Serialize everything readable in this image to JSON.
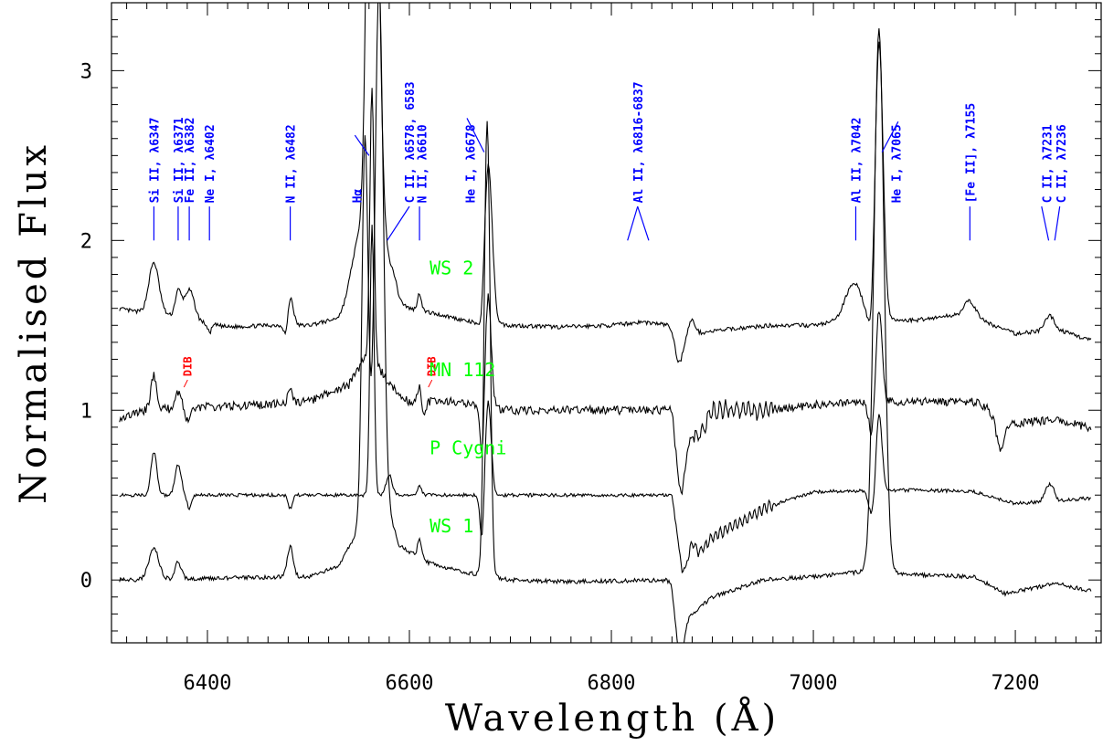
{
  "chart_data": {
    "type": "line",
    "xlabel": "Wavelength (Å)",
    "ylabel": "Normalised Flux",
    "xlim": [
      6305,
      7285
    ],
    "ylim": [
      -0.37,
      3.4
    ],
    "xticks": [
      6400,
      6600,
      6800,
      7000,
      7200
    ],
    "yticks": [
      0,
      1,
      2,
      3
    ],
    "grid": false,
    "colors": {
      "spectrum": "#000000",
      "line_id": "#0000ff",
      "star": "#00ff00",
      "dib": "#ff0000"
    },
    "series": [
      {
        "name": "WS 2",
        "offset": 1.5,
        "noise": 0.012,
        "start": 1.62,
        "end": 1.35,
        "points": [
          [
            6310,
            0.1
          ],
          [
            6330,
            0.08
          ],
          [
            6360,
            0.06
          ],
          [
            6380,
            0.03
          ],
          [
            6420,
            -0.01
          ],
          [
            6460,
            0
          ],
          [
            6500,
            0
          ],
          [
            6530,
            0.04
          ],
          [
            6550,
            0.15
          ],
          [
            6560,
            0.45
          ],
          [
            6572,
            0.3
          ],
          [
            6580,
            0.18
          ],
          [
            6600,
            0.1
          ],
          [
            6640,
            0.05
          ],
          [
            6660,
            0.02
          ],
          [
            6700,
            0
          ],
          [
            6750,
            -0.01
          ],
          [
            6800,
            0
          ],
          [
            6830,
            0.02
          ],
          [
            6860,
            0
          ],
          [
            6880,
            -0.05
          ],
          [
            6920,
            -0.02
          ],
          [
            6960,
            0
          ],
          [
            7000,
            0
          ],
          [
            7030,
            0.03
          ],
          [
            7100,
            0.03
          ],
          [
            7140,
            0.06
          ],
          [
            7170,
            0.02
          ],
          [
            7200,
            -0.05
          ],
          [
            7240,
            -0.02
          ],
          [
            7270,
            -0.08
          ]
        ],
        "features": [
          [
            6347,
            0.3,
            5
          ],
          [
            6371,
            0.15,
            3
          ],
          [
            6382,
            0.18,
            5
          ],
          [
            6402,
            -0.05,
            2
          ],
          [
            6482,
            0.17,
            3
          ],
          [
            6478,
            -0.1,
            2
          ],
          [
            6563,
            3.6,
            4
          ],
          [
            6566,
            1.5,
            6
          ],
          [
            6550,
            0.35,
            8
          ],
          [
            6583,
            0.15,
            4
          ],
          [
            6610,
            0.1,
            2
          ],
          [
            6672,
            -0.15,
            3
          ],
          [
            6678,
            0.95,
            4
          ],
          [
            6867,
            -0.2,
            4
          ],
          [
            6880,
            0.08,
            3
          ],
          [
            7040,
            0.22,
            8
          ],
          [
            7058,
            -0.2,
            3
          ],
          [
            7065,
            1.65,
            4
          ],
          [
            7155,
            0.1,
            6
          ],
          [
            7231,
            0.05,
            3
          ],
          [
            7236,
            0.06,
            3
          ]
        ]
      },
      {
        "name": "MN 112",
        "offset": 1.0,
        "noise": 0.025,
        "start": 0.94,
        "end": 0.85,
        "points": [
          [
            6310,
            -0.05
          ],
          [
            6340,
            0
          ],
          [
            6400,
            0.02
          ],
          [
            6450,
            0.03
          ],
          [
            6500,
            0.05
          ],
          [
            6540,
            0.15
          ],
          [
            6560,
            0.35
          ],
          [
            6580,
            0.15
          ],
          [
            6600,
            0.05
          ],
          [
            6640,
            0.05
          ],
          [
            6700,
            0
          ],
          [
            6800,
            0
          ],
          [
            6860,
            0
          ],
          [
            6870,
            -0.35
          ],
          [
            6900,
            0
          ],
          [
            6950,
            0
          ],
          [
            7000,
            0.03
          ],
          [
            7060,
            0.05
          ],
          [
            7100,
            0.05
          ],
          [
            7160,
            0.05
          ],
          [
            7200,
            -0.08
          ],
          [
            7240,
            -0.05
          ],
          [
            7270,
            -0.1
          ]
        ],
        "features": [
          [
            6347,
            0.2,
            3
          ],
          [
            6371,
            0.1,
            3
          ],
          [
            6380,
            -0.08,
            2
          ],
          [
            6482,
            0.1,
            2
          ],
          [
            6563,
            1.6,
            2
          ],
          [
            6610,
            0.1,
            2
          ],
          [
            6614,
            -0.1,
            2
          ],
          [
            6672,
            -0.35,
            2
          ],
          [
            6678,
            0.65,
            3
          ],
          [
            6867,
            -0.2,
            3
          ],
          [
            6880,
            0.1,
            3
          ],
          [
            7058,
            -0.2,
            3
          ],
          [
            7065,
            0.55,
            3
          ],
          [
            7185,
            -0.2,
            4
          ]
        ]
      },
      {
        "name": "P Cygni",
        "offset": 0.5,
        "noise": 0.01,
        "start": 0.5,
        "end": 0.48,
        "points": [
          [
            6310,
            0
          ],
          [
            6500,
            0
          ],
          [
            6700,
            0
          ],
          [
            6860,
            0
          ],
          [
            6870,
            -0.45
          ],
          [
            6900,
            -0.25
          ],
          [
            6950,
            -0.08
          ],
          [
            7000,
            0.02
          ],
          [
            7100,
            0.03
          ],
          [
            7160,
            0.02
          ],
          [
            7200,
            -0.05
          ],
          [
            7270,
            -0.02
          ]
        ],
        "features": [
          [
            6347,
            0.25,
            3
          ],
          [
            6371,
            0.18,
            3
          ],
          [
            6382,
            -0.08,
            2
          ],
          [
            6482,
            -0.08,
            2
          ],
          [
            6563,
            1.6,
            2
          ],
          [
            6580,
            0.12,
            3
          ],
          [
            6610,
            0.06,
            2
          ],
          [
            6672,
            -0.3,
            2
          ],
          [
            6678,
            0.55,
            3
          ],
          [
            6880,
            0.1,
            3
          ],
          [
            7058,
            -0.15,
            3
          ],
          [
            7065,
            0.45,
            3
          ],
          [
            7231,
            0.06,
            3
          ],
          [
            7236,
            0.08,
            3
          ]
        ]
      },
      {
        "name": "WS 1",
        "offset": 0.0,
        "noise": 0.012,
        "start": 0.0,
        "end": -0.06,
        "points": [
          [
            6310,
            0
          ],
          [
            6500,
            0.02
          ],
          [
            6530,
            0.08
          ],
          [
            6550,
            0.3
          ],
          [
            6560,
            0.5
          ],
          [
            6575,
            0.5
          ],
          [
            6590,
            0.2
          ],
          [
            6620,
            0.1
          ],
          [
            6650,
            0.05
          ],
          [
            6700,
            0
          ],
          [
            6760,
            -0.01
          ],
          [
            6860,
            0
          ],
          [
            6870,
            -0.25
          ],
          [
            6900,
            -0.1
          ],
          [
            6950,
            0
          ],
          [
            7000,
            0.02
          ],
          [
            7050,
            0.05
          ],
          [
            7100,
            0.03
          ],
          [
            7160,
            0.02
          ],
          [
            7190,
            -0.08
          ],
          [
            7240,
            -0.02
          ],
          [
            7270,
            -0.06
          ]
        ],
        "features": [
          [
            6347,
            0.18,
            5
          ],
          [
            6371,
            0.1,
            3
          ],
          [
            6482,
            0.18,
            3
          ],
          [
            6556,
            2.2,
            3
          ],
          [
            6570,
            3.0,
            4
          ],
          [
            6610,
            0.1,
            2
          ],
          [
            6672,
            -0.1,
            2
          ],
          [
            6677,
            2.7,
            3
          ],
          [
            6682,
            -0.1,
            2
          ],
          [
            6867,
            -0.25,
            4
          ],
          [
            7065,
            3.2,
            5
          ]
        ]
      }
    ],
    "star_labels": [
      {
        "name": "WS 2",
        "x": 6620,
        "y": 1.8
      },
      {
        "name": "MN 112",
        "x": 6620,
        "y": 1.2
      },
      {
        "name": "P Cygni",
        "x": 6620,
        "y": 0.74
      },
      {
        "name": "WS 1",
        "x": 6620,
        "y": 0.28
      }
    ],
    "line_ids": [
      {
        "text": "Si II, λ6347",
        "x": 6347,
        "ticks": [
          [
            6347,
            6347
          ]
        ]
      },
      {
        "text": "Si II, λ6371",
        "x": 6371,
        "ticks": [
          [
            6371,
            6371
          ]
        ]
      },
      {
        "text": "Fe II, λ6382",
        "x": 6382,
        "ticks": [
          [
            6382,
            6382
          ]
        ]
      },
      {
        "text": "Ne I, λ6402",
        "x": 6402,
        "ticks": [
          [
            6402,
            6402
          ]
        ]
      },
      {
        "text": "N II, λ6482",
        "x": 6482,
        "ticks": [
          [
            6482,
            6482
          ]
        ]
      },
      {
        "text": "Hα",
        "x": 6548,
        "ticks": []
      },
      {
        "text": "C II, λ6578, 6583",
        "x": 6600,
        "ticks": [
          [
            6600,
            6578
          ]
        ]
      },
      {
        "text": "N II, λ6610",
        "x": 6612,
        "ticks": [
          [
            6610,
            6610
          ]
        ]
      },
      {
        "text": "He I, λ6678",
        "x": 6660,
        "ticks": []
      },
      {
        "text": "Al II, λ6816-6837",
        "x": 6826,
        "ticks": [
          [
            6826,
            6816
          ],
          [
            6826,
            6837
          ]
        ]
      },
      {
        "text": "Al II, λ7042",
        "x": 7042,
        "ticks": [
          [
            7042,
            7042
          ]
        ]
      },
      {
        "text": "He I, λ7065",
        "x": 7082,
        "ticks": []
      },
      {
        "text": "[Fe II], λ7155",
        "x": 7155,
        "ticks": [
          [
            7155,
            7155
          ]
        ]
      },
      {
        "text": "C II, λ7231",
        "x": 7231,
        "ticks": [
          [
            7226,
            7233
          ]
        ]
      },
      {
        "text": "C II, λ7236",
        "x": 7245,
        "ticks": [
          [
            7244,
            7239
          ]
        ]
      }
    ],
    "dib_labels": [
      {
        "text": "DIB",
        "x": 6384,
        "y": 1.2
      },
      {
        "text": "DIB",
        "x": 6626,
        "y": 1.2
      }
    ]
  }
}
